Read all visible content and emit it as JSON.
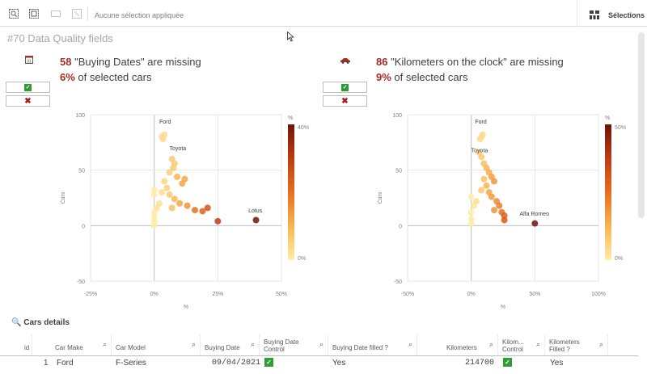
{
  "toolbar": {
    "selection_text": "Aucune sélection appliquée",
    "selections_label": "Sélections"
  },
  "sheet": {
    "title": "#70 Data Quality fields"
  },
  "panels": [
    {
      "icon": "calendar-icon",
      "count": "58",
      "text": " \"Buying Dates\" are missing",
      "pct": "6%",
      "pct_text": " of selected cars",
      "chart_data": {
        "type": "scatter",
        "xlabel": "%",
        "ylabel": "Cars",
        "xlim": [
          -25,
          50
        ],
        "ylim": [
          -50,
          100
        ],
        "x_ticks": [
          "-25%",
          "0%",
          "25%",
          "50%"
        ],
        "y_ticks": [
          "100",
          "50",
          "0",
          "-50"
        ],
        "color_scale": {
          "label": "%",
          "max": "40%",
          "min": "0%"
        },
        "annotations": [
          "Ford",
          "Toyota",
          "Lotus"
        ],
        "points": [
          {
            "x": 3,
            "y": 80
          },
          {
            "x": 4,
            "y": 82
          },
          {
            "x": 3.5,
            "y": 78
          },
          {
            "x": 7,
            "y": 60
          },
          {
            "x": 8,
            "y": 56
          },
          {
            "x": 7.5,
            "y": 52
          },
          {
            "x": 6,
            "y": 48
          },
          {
            "x": 9,
            "y": 44
          },
          {
            "x": 12,
            "y": 42
          },
          {
            "x": 11,
            "y": 38
          },
          {
            "x": 4,
            "y": 40
          },
          {
            "x": 5,
            "y": 34
          },
          {
            "x": 3,
            "y": 30
          },
          {
            "x": 6,
            "y": 28
          },
          {
            "x": 8,
            "y": 24
          },
          {
            "x": 10,
            "y": 20
          },
          {
            "x": 13,
            "y": 18
          },
          {
            "x": 7,
            "y": 16
          },
          {
            "x": 2,
            "y": 20
          },
          {
            "x": 1,
            "y": 16
          },
          {
            "x": 0,
            "y": 12
          },
          {
            "x": 0,
            "y": 8
          },
          {
            "x": 0,
            "y": 4
          },
          {
            "x": 0,
            "y": 0
          },
          {
            "x": 0,
            "y": 28
          },
          {
            "x": 0,
            "y": 32
          },
          {
            "x": 16,
            "y": 14
          },
          {
            "x": 19,
            "y": 13
          },
          {
            "x": 21,
            "y": 16
          },
          {
            "x": 25,
            "y": 4
          },
          {
            "x": 40,
            "y": 5
          }
        ],
        "point_pcts": [
          3,
          3,
          3,
          6,
          6,
          6,
          5,
          10,
          12,
          12,
          4,
          5,
          3,
          6,
          9,
          12,
          15,
          8,
          2,
          2,
          0,
          0,
          0,
          0,
          0,
          0,
          20,
          22,
          25,
          30,
          40
        ]
      },
      "ok_button": "check",
      "ko_button": "cross"
    },
    {
      "icon": "car-icon",
      "count": "86",
      "text": " \"Kilometers on the clock\" are missing",
      "pct": "9%",
      "pct_text": " of selected cars",
      "chart_data": {
        "type": "scatter",
        "xlabel": "%",
        "ylabel": "Cars",
        "xlim": [
          -50,
          100
        ],
        "ylim": [
          -50,
          100
        ],
        "x_ticks": [
          "-50%",
          "0%",
          "50%",
          "100%"
        ],
        "y_ticks": [
          "100",
          "50",
          "0",
          "-50"
        ],
        "color_scale": {
          "label": "%",
          "max": "50%",
          "min": "0%"
        },
        "annotations": [
          "Ford",
          "Toyota",
          "Alfa Romeo"
        ],
        "points": [
          {
            "x": 8,
            "y": 80
          },
          {
            "x": 9,
            "y": 82
          },
          {
            "x": 7,
            "y": 78
          },
          {
            "x": 6,
            "y": 66
          },
          {
            "x": 8,
            "y": 62
          },
          {
            "x": 10,
            "y": 56
          },
          {
            "x": 12,
            "y": 52
          },
          {
            "x": 14,
            "y": 48
          },
          {
            "x": 16,
            "y": 44
          },
          {
            "x": 18,
            "y": 40
          },
          {
            "x": 10,
            "y": 42
          },
          {
            "x": 12,
            "y": 36
          },
          {
            "x": 8,
            "y": 32
          },
          {
            "x": 14,
            "y": 30
          },
          {
            "x": 16,
            "y": 26
          },
          {
            "x": 20,
            "y": 22
          },
          {
            "x": 22,
            "y": 18
          },
          {
            "x": 18,
            "y": 14
          },
          {
            "x": 24,
            "y": 12
          },
          {
            "x": 26,
            "y": 9
          },
          {
            "x": 26,
            "y": 5
          },
          {
            "x": 4,
            "y": 22
          },
          {
            "x": 2,
            "y": 18
          },
          {
            "x": 0,
            "y": 12
          },
          {
            "x": 0,
            "y": 6
          },
          {
            "x": 0,
            "y": 2
          },
          {
            "x": 0,
            "y": 26
          },
          {
            "x": 50,
            "y": 2
          }
        ],
        "point_pcts": [
          4,
          4,
          4,
          6,
          8,
          10,
          12,
          14,
          16,
          18,
          10,
          12,
          8,
          15,
          17,
          20,
          22,
          18,
          25,
          28,
          30,
          3,
          2,
          0,
          0,
          0,
          0,
          50
        ]
      },
      "ok_button": "check",
      "ko_button": "cross"
    }
  ],
  "details": {
    "title": "Cars details",
    "columns": [
      "id",
      "Car Make",
      "Car Model",
      "Buying Date",
      "Buying Date Control",
      "Buying Date filled ?",
      "Kilometers",
      "Kilom... Control",
      "Kilometers Filled ?"
    ],
    "rows": [
      {
        "id": "1",
        "make": "Ford",
        "model": "F-Series",
        "buying_date": "09/04/2021",
        "buying_filled": "Yes",
        "km": "214700",
        "km_filled": "Yes"
      }
    ]
  }
}
